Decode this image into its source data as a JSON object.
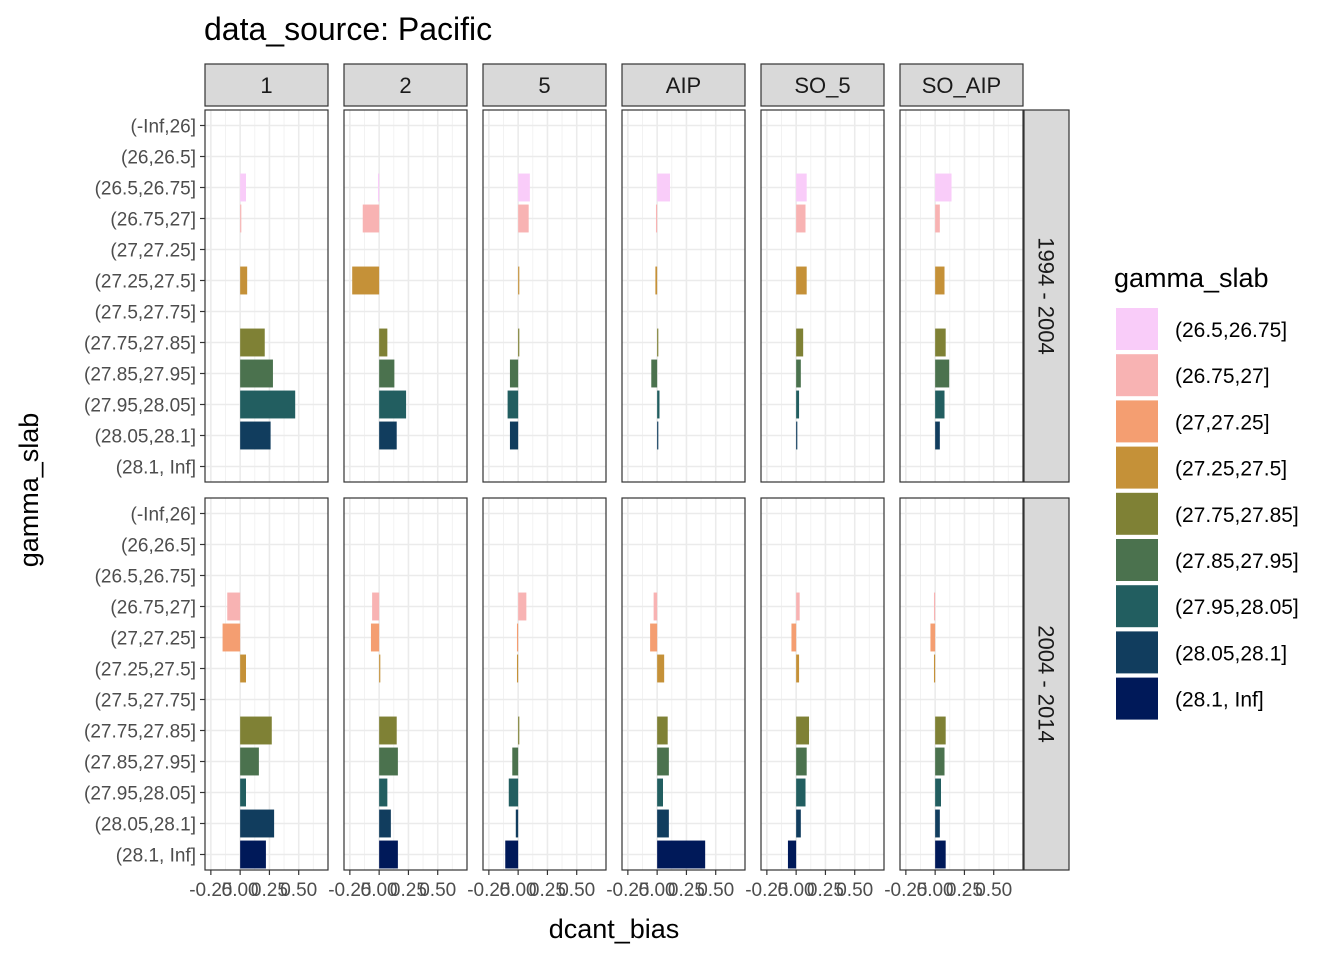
{
  "chart_data": {
    "type": "bar",
    "orientation": "horizontal",
    "title": "data_source: Pacific",
    "xlabel": "dcant_bias",
    "ylabel": "gamma_slab",
    "xlim": [
      -0.3,
      0.75
    ],
    "xticks": [
      -0.25,
      0.0,
      0.25,
      0.5
    ],
    "xtick_labels": [
      "-0.25",
      "0.00",
      "0.25",
      "0.50"
    ],
    "categories": [
      "(-Inf,26]",
      "(26,26.5]",
      "(26.5,26.75]",
      "(26.75,27]",
      "(27,27.25]",
      "(27.25,27.5]",
      "(27.5,27.75]",
      "(27.75,27.85]",
      "(27.85,27.95]",
      "(27.95,28.05]",
      "(28.05,28.1]",
      "(28.1, Inf]"
    ],
    "col_facets": [
      "1",
      "2",
      "5",
      "AIP",
      "SO_5",
      "SO_AIP"
    ],
    "row_facets": [
      "1994 - 2004",
      "2004 - 2014"
    ],
    "legend": {
      "title": "gamma_slab",
      "placement": "right",
      "entries": [
        {
          "label": "(26.5,26.75]",
          "color": "#F9CCF9"
        },
        {
          "label": "(26.75,27]",
          "color": "#F8B3B3"
        },
        {
          "label": "(27,27.25]",
          "color": "#F49E71"
        },
        {
          "label": "(27.25,27.5]",
          "color": "#C59138"
        },
        {
          "label": "(27.75,27.85]",
          "color": "#7F8135"
        },
        {
          "label": "(27.85,27.95]",
          "color": "#4B724E"
        },
        {
          "label": "(27.95,28.05]",
          "color": "#225E60"
        },
        {
          "label": "(28.05,28.1]",
          "color": "#113D5E"
        },
        {
          "label": "(28.1, Inf]",
          "color": "#001959"
        }
      ]
    },
    "panels": [
      [
        {
          "(26.5,26.75]": 0.05,
          "(26.75,27]": 0.01,
          "(27.25,27.5]": 0.06,
          "(27.75,27.85]": 0.21,
          "(27.85,27.95]": 0.28,
          "(27.95,28.05]": 0.47,
          "(28.05,28.1]": 0.26
        },
        {
          "(26.5,26.75]": -0.01,
          "(26.75,27]": -0.14,
          "(27.25,27.5]": -0.23,
          "(27.75,27.85]": 0.07,
          "(27.85,27.95]": 0.13,
          "(27.95,28.05]": 0.23,
          "(28.05,28.1]": 0.15
        },
        {
          "(26.5,26.75]": 0.1,
          "(26.75,27]": 0.09,
          "(27.25,27.5]": 0.01,
          "(27.75,27.85]": 0.01,
          "(27.85,27.95]": -0.07,
          "(27.95,28.05]": -0.09,
          "(28.05,28.1]": -0.07
        },
        {
          "(26.5,26.75]": 0.11,
          "(26.75,27]": -0.01,
          "(27.25,27.5]": -0.015,
          "(27.75,27.85]": 0.01,
          "(27.85,27.95]": -0.05,
          "(27.95,28.05]": 0.02,
          "(28.05,28.1]": 0.01
        },
        {
          "(26.5,26.75]": 0.09,
          "(26.75,27]": 0.08,
          "(27.25,27.5]": 0.09,
          "(27.75,27.85]": 0.06,
          "(27.85,27.95]": 0.04,
          "(27.95,28.05]": 0.025,
          "(28.05,28.1]": 0.01
        },
        {
          "(26.5,26.75]": 0.14,
          "(26.75,27]": 0.04,
          "(27.25,27.5]": 0.08,
          "(27.75,27.85]": 0.09,
          "(27.85,27.95]": 0.12,
          "(27.95,28.05]": 0.08,
          "(28.05,28.1]": 0.04
        }
      ],
      [
        {
          "(26.75,27]": -0.11,
          "(27,27.25]": -0.15,
          "(27.25,27.5]": 0.05,
          "(27.75,27.85]": 0.27,
          "(27.85,27.95]": 0.16,
          "(27.95,28.05]": 0.05,
          "(28.05,28.1]": 0.29,
          "(28.1, Inf]": 0.22
        },
        {
          "(26.75,27]": -0.06,
          "(27,27.25]": -0.07,
          "(27.25,27.5]": 0.01,
          "(27.75,27.85]": 0.15,
          "(27.85,27.95]": 0.16,
          "(27.95,28.05]": 0.07,
          "(28.05,28.1]": 0.1,
          "(28.1, Inf]": 0.16
        },
        {
          "(26.75,27]": 0.07,
          "(27,27.25]": -0.01,
          "(27.25,27.5]": -0.01,
          "(27.75,27.85]": 0.01,
          "(27.85,27.95]": -0.05,
          "(27.95,28.05]": -0.08,
          "(28.05,28.1]": -0.02,
          "(28.1, Inf]": -0.11
        },
        {
          "(26.75,27]": -0.03,
          "(27,27.25]": -0.06,
          "(27.25,27.5]": 0.06,
          "(27.75,27.85]": 0.09,
          "(27.85,27.95]": 0.1,
          "(27.95,28.05]": 0.05,
          "(28.05,28.1]": 0.1,
          "(28.1, Inf]": 0.41
        },
        {
          "(26.75,27]": 0.03,
          "(27,27.25]": -0.04,
          "(27.25,27.5]": 0.025,
          "(27.75,27.85]": 0.11,
          "(27.85,27.95]": 0.09,
          "(27.95,28.05]": 0.08,
          "(28.05,28.1]": 0.04,
          "(28.1, Inf]": -0.07
        },
        {
          "(26.75,27]": -0.01,
          "(27,27.25]": -0.04,
          "(27.25,27.5]": -0.01,
          "(27.75,27.85]": 0.09,
          "(27.85,27.95]": 0.08,
          "(27.95,28.05]": 0.05,
          "(28.05,28.1]": 0.04,
          "(28.1, Inf]": 0.09
        }
      ]
    ]
  }
}
